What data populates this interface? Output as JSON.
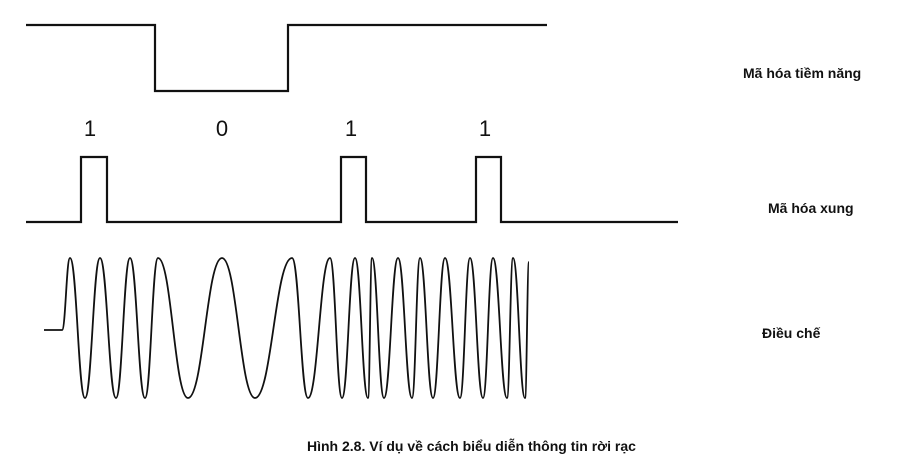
{
  "labels": {
    "nrz": "Mã hóa tiềm năng",
    "rz": "Mã hóa xung",
    "modulation": "Điều chế"
  },
  "bits": [
    "1",
    "0",
    "1",
    "1"
  ],
  "caption": "Hình 2.8. Ví dụ về cách biểu diễn thông tin rời rạc",
  "colors": {
    "ink": "#111111",
    "background": "#ffffff"
  }
}
